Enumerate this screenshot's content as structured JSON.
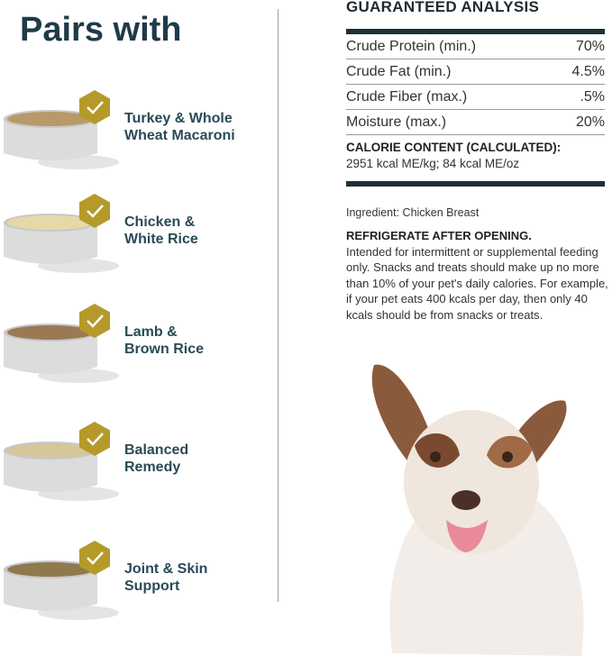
{
  "pairs": {
    "title": "Pairs with",
    "items": [
      {
        "line1": "Turkey & Whole",
        "line2": "Wheat Macaroni",
        "food_color": "#b89a6a"
      },
      {
        "line1": "Chicken &",
        "line2": "White Rice",
        "food_color": "#e6d9a8"
      },
      {
        "line1": "Lamb &",
        "line2": "Brown Rice",
        "food_color": "#9a7a55"
      },
      {
        "line1": "Balanced",
        "line2": "Remedy",
        "food_color": "#d6c79a"
      },
      {
        "line1": "Joint & Skin",
        "line2": "Support",
        "food_color": "#8f7a4e"
      }
    ],
    "badge_icon": "check-icon",
    "badge_color": "#b59a2a"
  },
  "analysis": {
    "title": "GUARANTEED ANALYSIS",
    "rows": [
      {
        "name": "Crude Protein (min.)",
        "value": "70%"
      },
      {
        "name": "Crude Fat (min.)",
        "value": "4.5%"
      },
      {
        "name": "Crude Fiber (max.)",
        "value": ".5%"
      },
      {
        "name": "Moisture (max.)",
        "value": "20%"
      }
    ],
    "calorie_heading": "CALORIE CONTENT (CALCULATED):",
    "calorie_value": "2951 kcal ME/kg; 84 kcal ME/oz"
  },
  "ingredient": "Ingredient: Chicken Breast",
  "refrigerate": {
    "heading": "REFRIGERATE AFTER OPENING.",
    "body": "Intended for intermittent or supplemental feeding only. Snacks and treats should make up no more than 10% of your pet's daily calories. For example, if your pet eats 400 kcals per day, then only 40 kcals should be from snacks or treats."
  },
  "colors": {
    "heading": "#1f3b48",
    "gold": "#b59a2a",
    "bar": "#1f2f36"
  }
}
